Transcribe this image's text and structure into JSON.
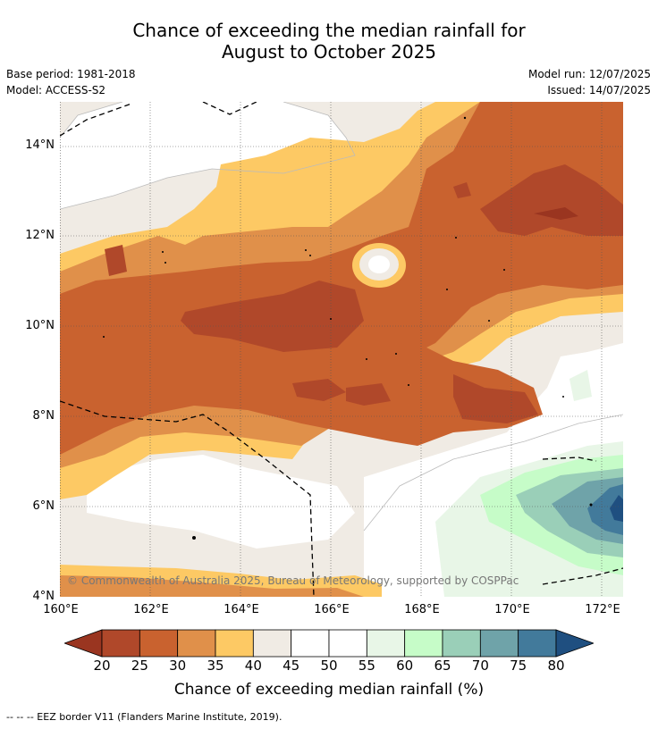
{
  "title_line1": "Chance of exceeding the median rainfall for",
  "title_line2": "August to October 2025",
  "meta": {
    "base_period": "Base period: 1981-2018",
    "model": "Model: ACCESS-S2",
    "model_run": "Model run: 12/07/2025",
    "issued": "Issued: 14/07/2025"
  },
  "lat_labels": [
    "14°N",
    "12°N",
    "10°N",
    "8°N",
    "6°N",
    "4°N"
  ],
  "lon_labels": [
    "160°E",
    "162°E",
    "164°E",
    "166°E",
    "168°E",
    "170°E",
    "172°E"
  ],
  "copyright": "© Commonwealth of Australia 2025, Bureau of Meteorology, supported by COSPPac",
  "colorbar": {
    "ticks": [
      "20",
      "25",
      "30",
      "35",
      "40",
      "45",
      "50",
      "55",
      "60",
      "65",
      "70",
      "75",
      "80"
    ],
    "colors": [
      "#b0482a",
      "#c9622f",
      "#e0904a",
      "#fdc964",
      "#f0ebe4",
      "#ffffff",
      "#ffffff",
      "#e8f6e7",
      "#c6fcc8",
      "#9acfb8",
      "#6fa3a9",
      "#427a9b"
    ],
    "under_color": "#9a3520",
    "over_color": "#1f4f80",
    "label": "Chance of exceeding median rainfall (%)"
  },
  "legend_footnote": "--  --  -- EEZ border V11 (Flanders Marine Institute, 2019)."
}
